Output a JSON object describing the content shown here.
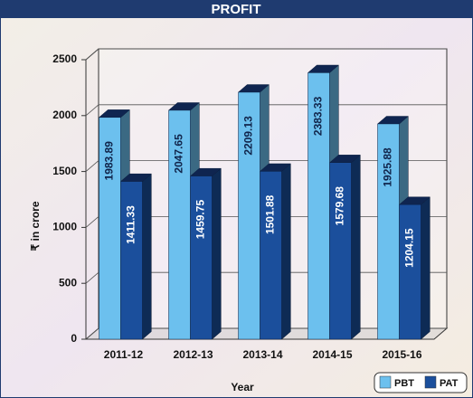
{
  "chart_data": {
    "type": "bar",
    "title": "PROFIT",
    "x_label": "Year",
    "y_label": "₹ in crore",
    "categories": [
      "2011-12",
      "2012-13",
      "2013-14",
      "2014-15",
      "2015-16"
    ],
    "series": [
      {
        "name": "PBT",
        "color": "#6cc0ee",
        "values": [
          1983.89,
          2047.65,
          2209.13,
          2383.33,
          1925.88
        ]
      },
      {
        "name": "PAT",
        "color": "#1b4f9c",
        "values": [
          1411.33,
          1459.75,
          1501.88,
          1579.68,
          1204.15
        ]
      }
    ],
    "ylim": [
      0,
      2500
    ],
    "yticks": [
      0,
      500,
      1000,
      1500,
      2000,
      2500
    ],
    "grid": true,
    "legend": "bottom-right"
  }
}
